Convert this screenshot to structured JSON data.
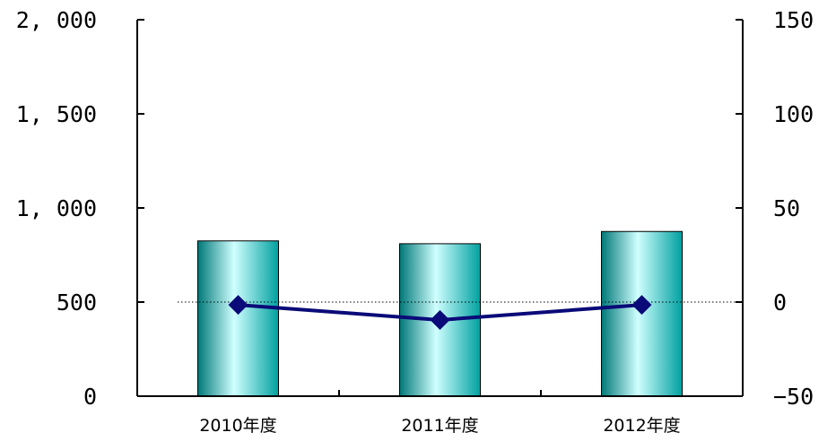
{
  "chart_data": {
    "type": "bar+line",
    "categories": [
      "2010年度",
      "2011年度",
      "2012年度"
    ],
    "series": [
      {
        "type": "bar",
        "axis": "left",
        "values": [
          825,
          810,
          875
        ]
      },
      {
        "type": "line",
        "axis": "right",
        "values": [
          -1.5,
          -9.5,
          -1.5
        ]
      }
    ],
    "left_axis": {
      "ylim": [
        0,
        2000
      ],
      "ticks": [
        0,
        500,
        1000,
        1500,
        2000
      ],
      "tick_labels": [
        "0",
        "500",
        "1, 000",
        "1, 500",
        "2, 000"
      ]
    },
    "right_axis": {
      "ylim": [
        -50,
        150
      ],
      "ticks": [
        -50,
        0,
        50,
        100,
        150
      ],
      "tick_labels": [
        "−50",
        "0",
        "50",
        "100",
        "150"
      ]
    },
    "reference_line": {
      "axis": "right",
      "value": 0,
      "style": "dotted"
    },
    "grid": false,
    "colors": {
      "bar": "#00C8C8",
      "bar_highlight": "#D0FFFF",
      "bar_shadow": "#007878",
      "line": "#0A0A78",
      "marker": "#0A0A78",
      "axis": "#000000"
    }
  }
}
